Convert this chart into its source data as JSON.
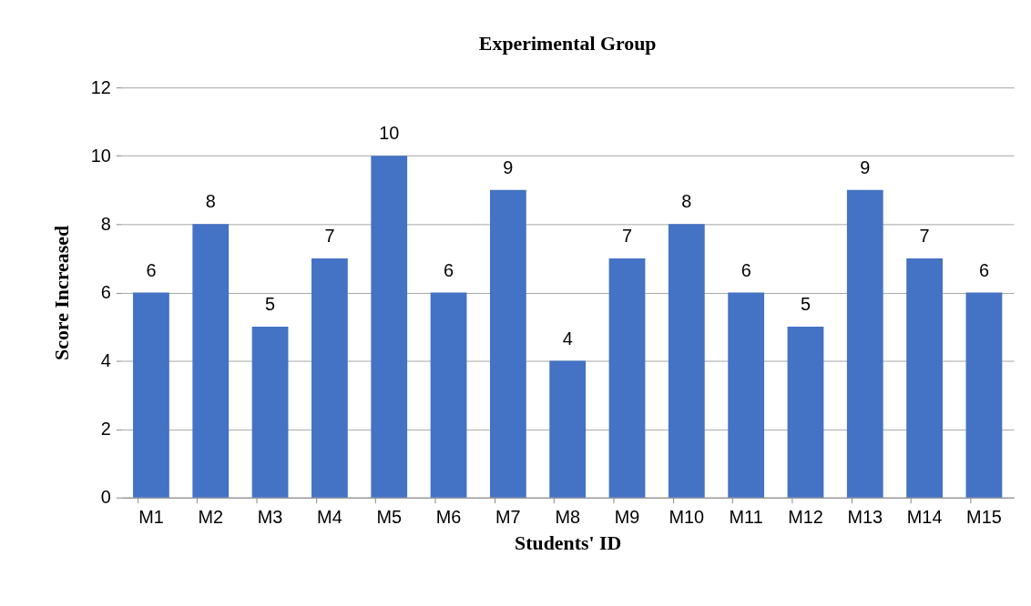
{
  "chart_data": {
    "type": "bar",
    "title": "Experimental Group",
    "xlabel": "Students' ID",
    "ylabel": "Score Increased",
    "categories": [
      "M1",
      "M2",
      "M3",
      "M4",
      "M5",
      "M6",
      "M7",
      "M8",
      "M9",
      "M10",
      "M11",
      "M12",
      "M13",
      "M14",
      "M15"
    ],
    "values": [
      6,
      8,
      5,
      7,
      10,
      6,
      9,
      4,
      7,
      8,
      6,
      5,
      9,
      7,
      6
    ],
    "color": "#4472c4",
    "ylim": [
      0,
      12
    ],
    "yticks": [
      0,
      2,
      4,
      6,
      8,
      10,
      12
    ],
    "grid": "y",
    "data_labels": true
  }
}
